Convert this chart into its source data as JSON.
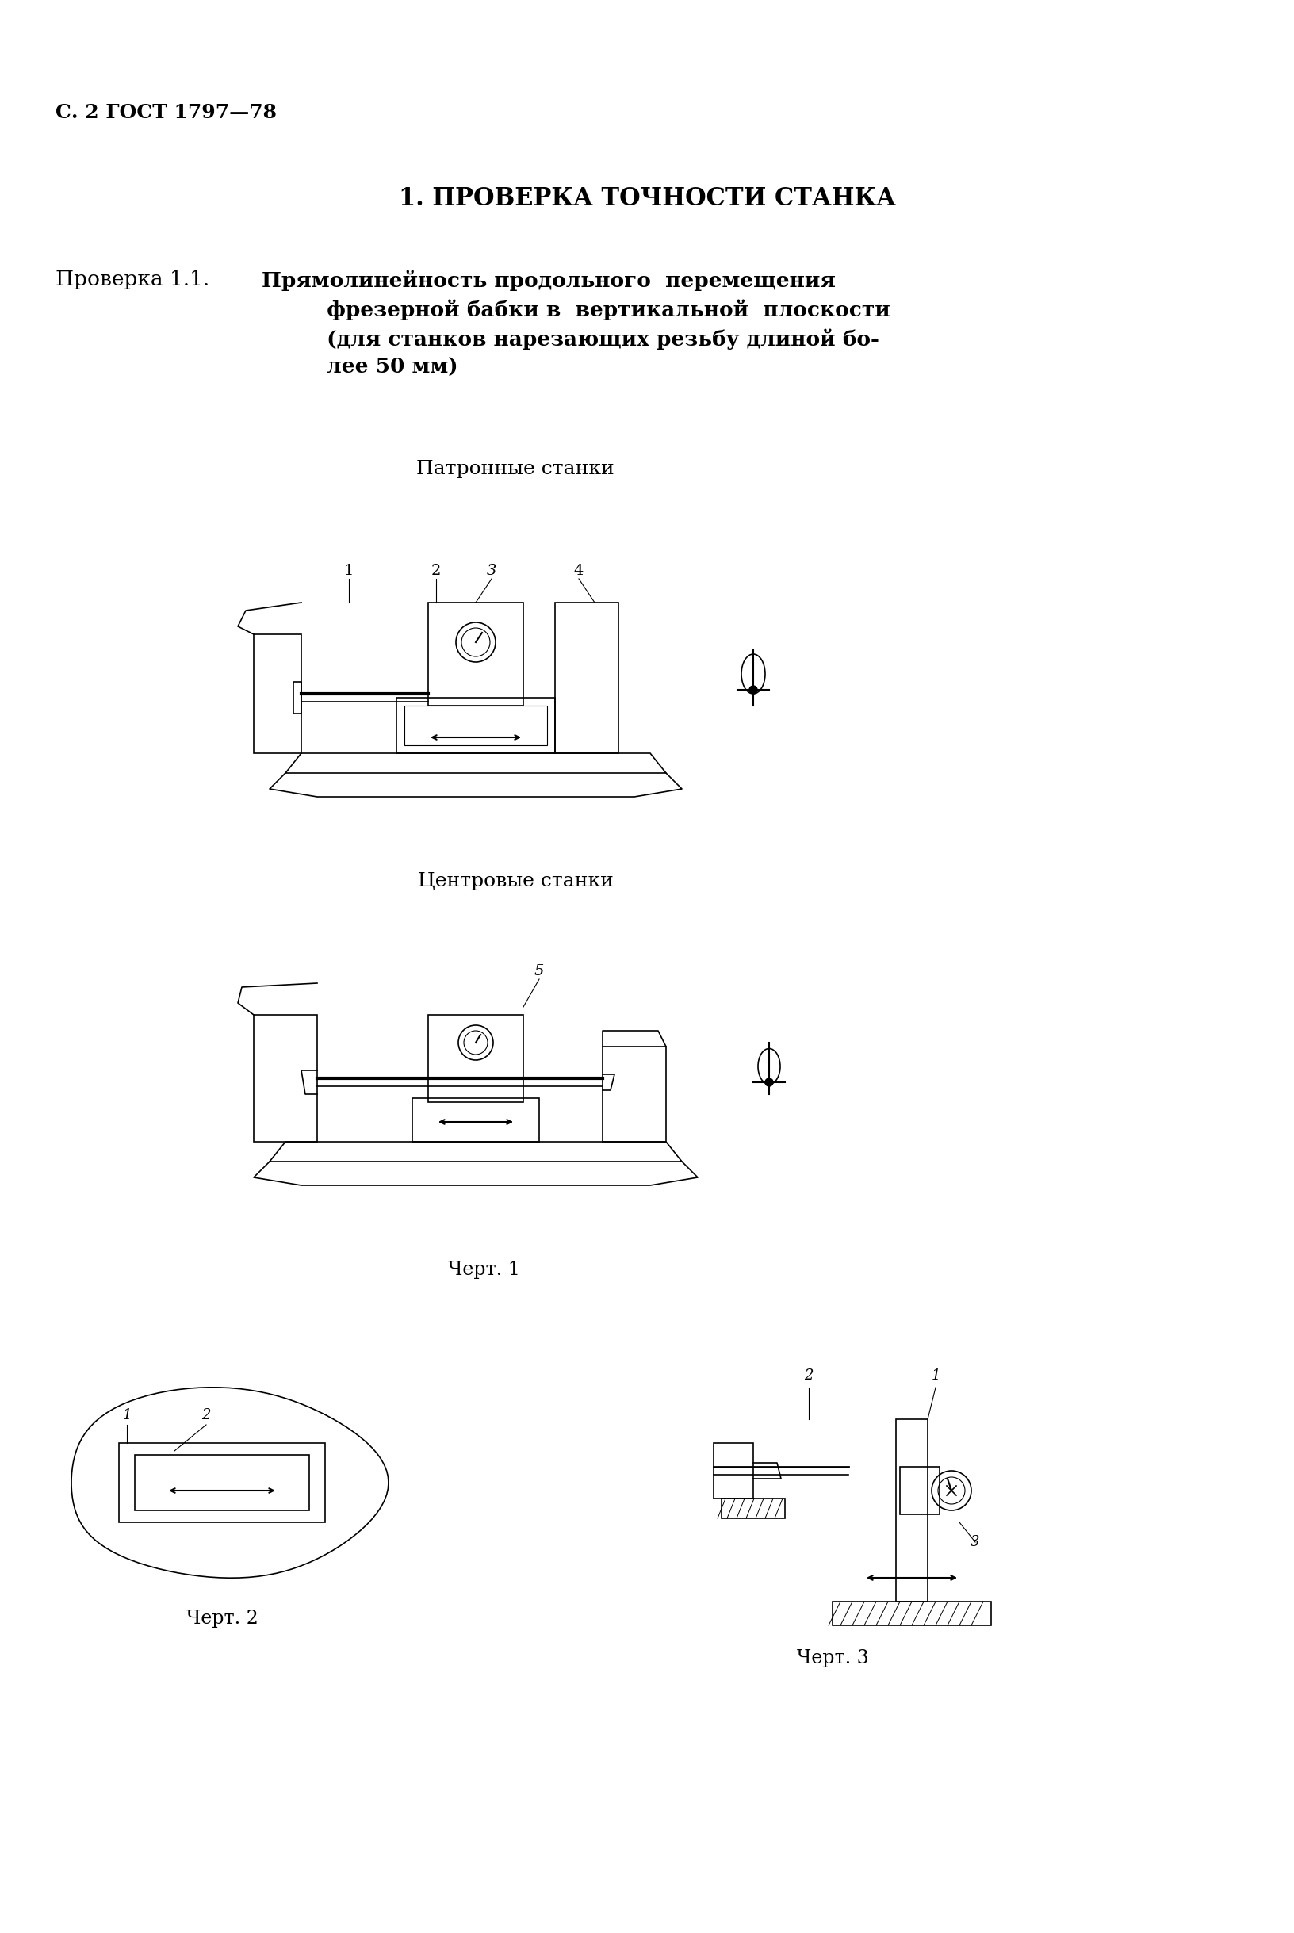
{
  "page_header": "С. 2 ГОСТ 1797—78",
  "section_title": "1. ПРОВЕРКА ТОЧНОСТИ СТАНКА",
  "check_label": "Проверка 1.1.",
  "check_title_bold": "Прямолинейность продольного  перемещения\n         фрезерной бабки в  вертикальной  плоскости\n         (для станков нарезающих резьбу длиной бо-\n         лее 50 мм)",
  "subtitle1": "Патронные станки",
  "subtitle2": "Центровые станки",
  "caption1": "Черт. 1",
  "caption2": "Черт. 2",
  "caption3": "Черт. 3",
  "bg_color": "#ffffff",
  "text_color": "#000000"
}
